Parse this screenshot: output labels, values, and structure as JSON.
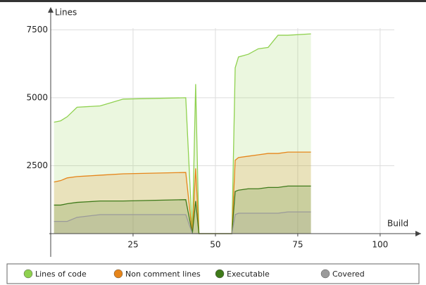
{
  "chart_data": {
    "type": "area",
    "x_label": "Build",
    "y_label": "Lines",
    "x": [
      1,
      3,
      5,
      8,
      15,
      22,
      41,
      43,
      44,
      45,
      55,
      56,
      57,
      60,
      63,
      66,
      69,
      72,
      79
    ],
    "series": [
      {
        "name": "Lines of code",
        "color": "#8fd14f",
        "values": [
          4100,
          4150,
          4300,
          4650,
          4700,
          4950,
          5000,
          0,
          5500,
          0,
          0,
          6100,
          6500,
          6600,
          6800,
          6850,
          7300,
          7300,
          7350
        ]
      },
      {
        "name": "Non comment lines",
        "color": "#e6851a",
        "values": [
          1900,
          1950,
          2050,
          2100,
          2150,
          2200,
          2250,
          0,
          2400,
          0,
          0,
          2700,
          2800,
          2850,
          2900,
          2950,
          2950,
          3000,
          3000
        ]
      },
      {
        "name": "Executable",
        "color": "#3f7a1a",
        "values": [
          1050,
          1050,
          1100,
          1150,
          1200,
          1200,
          1250,
          0,
          1200,
          0,
          0,
          1550,
          1600,
          1650,
          1650,
          1700,
          1700,
          1750,
          1750
        ]
      },
      {
        "name": "Covered",
        "color": "#9a9a9a",
        "values": [
          450,
          450,
          450,
          600,
          700,
          700,
          700,
          0,
          0,
          0,
          0,
          700,
          750,
          750,
          750,
          750,
          750,
          800,
          800
        ]
      }
    ],
    "xlim": [
      0,
      112
    ],
    "ylim": [
      0,
      8000
    ],
    "xticks": [
      25,
      50,
      75,
      100
    ],
    "yticks": [
      2500,
      5000,
      7500
    ],
    "grid": true
  }
}
